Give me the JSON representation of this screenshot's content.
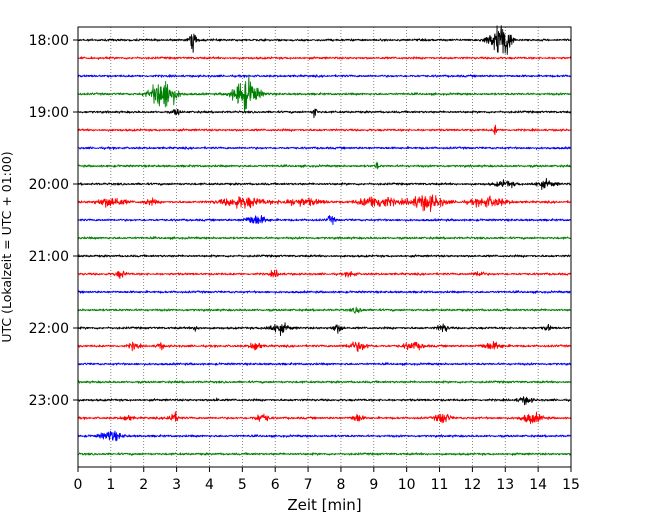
{
  "chart_data": {
    "type": "line",
    "subtype": "seismogram-helicorder",
    "xlabel": "Zeit  [min]",
    "ylabel": "UTC (Lokalzeit = UTC + 01:00)",
    "xlim": [
      0,
      15
    ],
    "x_ticks": [
      "0",
      "1",
      "2",
      "3",
      "4",
      "5",
      "6",
      "7",
      "8",
      "9",
      "10",
      "11",
      "12",
      "13",
      "14",
      "15"
    ],
    "y_tick_labels": [
      "18:00",
      "19:00",
      "20:00",
      "21:00",
      "22:00",
      "23:00"
    ],
    "grid": "vertical dotted at each minute",
    "trace_colors": [
      "#000000",
      "#ff0000",
      "#0000ff",
      "#008000"
    ],
    "trace_interval_minutes": 15,
    "traces": [
      {
        "start": "18:00",
        "bursts": [
          [
            3.5,
            0.7,
            0.1
          ],
          [
            12.8,
            1.0,
            0.3
          ],
          [
            13.0,
            0.7,
            0.15
          ]
        ]
      },
      {
        "start": "18:15",
        "bursts": []
      },
      {
        "start": "18:30",
        "bursts": []
      },
      {
        "start": "18:45",
        "bursts": [
          [
            2.6,
            1.2,
            0.35
          ],
          [
            5.1,
            1.2,
            0.35
          ]
        ]
      },
      {
        "start": "19:00",
        "bursts": [
          [
            7.2,
            0.6,
            0.05
          ],
          [
            3.0,
            0.25,
            0.1
          ]
        ]
      },
      {
        "start": "19:15",
        "bursts": [
          [
            12.7,
            0.4,
            0.05
          ]
        ]
      },
      {
        "start": "19:30",
        "bursts": []
      },
      {
        "start": "19:45",
        "bursts": [
          [
            9.1,
            0.3,
            0.05
          ]
        ]
      },
      {
        "start": "20:00",
        "bursts": [
          [
            14.2,
            0.25,
            0.3
          ],
          [
            13.0,
            0.2,
            0.3
          ]
        ]
      },
      {
        "start": "20:15",
        "bursts": [
          [
            1.0,
            0.35,
            0.4
          ],
          [
            5.0,
            0.4,
            0.6
          ],
          [
            9.1,
            0.45,
            0.5
          ],
          [
            10.6,
            0.55,
            0.5
          ],
          [
            12.5,
            0.35,
            0.5
          ],
          [
            2.2,
            0.2,
            0.2
          ],
          [
            6.8,
            0.25,
            0.6
          ]
        ]
      },
      {
        "start": "20:30",
        "bursts": [
          [
            5.4,
            0.35,
            0.3
          ],
          [
            7.7,
            0.3,
            0.1
          ]
        ]
      },
      {
        "start": "20:45",
        "bursts": []
      },
      {
        "start": "21:00",
        "bursts": []
      },
      {
        "start": "21:15",
        "bursts": [
          [
            1.3,
            0.25,
            0.15
          ],
          [
            6.0,
            0.2,
            0.15
          ],
          [
            8.3,
            0.2,
            0.15
          ],
          [
            12.2,
            0.2,
            0.15
          ]
        ]
      },
      {
        "start": "21:30",
        "bursts": []
      },
      {
        "start": "21:45",
        "bursts": [
          [
            8.5,
            0.2,
            0.15
          ]
        ]
      },
      {
        "start": "22:00",
        "bursts": [
          [
            6.1,
            0.35,
            0.3
          ],
          [
            7.9,
            0.3,
            0.15
          ],
          [
            11.1,
            0.3,
            0.15
          ],
          [
            14.3,
            0.2,
            0.1
          ],
          [
            3.6,
            0.2,
            0.1
          ]
        ]
      },
      {
        "start": "22:15",
        "bursts": [
          [
            1.7,
            0.25,
            0.15
          ],
          [
            5.4,
            0.35,
            0.15
          ],
          [
            8.5,
            0.3,
            0.3
          ],
          [
            10.2,
            0.25,
            0.3
          ],
          [
            12.6,
            0.25,
            0.3
          ],
          [
            2.5,
            0.25,
            0.1
          ]
        ]
      },
      {
        "start": "22:30",
        "bursts": []
      },
      {
        "start": "22:45",
        "bursts": []
      },
      {
        "start": "23:00",
        "bursts": [
          [
            13.6,
            0.25,
            0.2
          ],
          [
            4.2,
            0.2,
            0.05
          ]
        ]
      },
      {
        "start": "23:15",
        "bursts": [
          [
            2.9,
            0.4,
            0.15
          ],
          [
            5.6,
            0.3,
            0.2
          ],
          [
            8.5,
            0.3,
            0.15
          ],
          [
            11.1,
            0.4,
            0.2
          ],
          [
            13.8,
            0.35,
            0.3
          ],
          [
            1.5,
            0.2,
            0.15
          ]
        ]
      },
      {
        "start": "23:30",
        "bursts": [
          [
            1.0,
            0.35,
            0.3
          ]
        ]
      },
      {
        "start": "23:45",
        "bursts": []
      }
    ]
  }
}
